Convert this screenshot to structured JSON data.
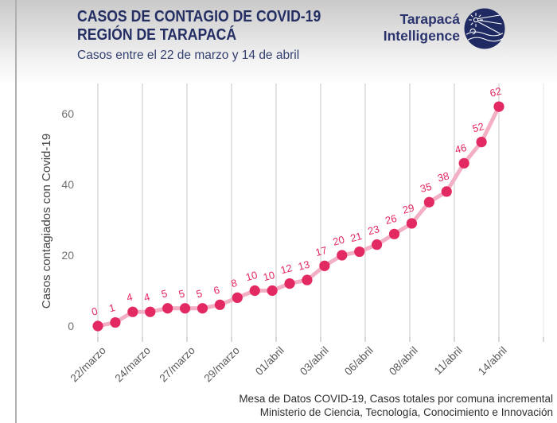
{
  "header": {
    "title_line1": "CASOS DE CONTAGIO DE COVID-19",
    "title_line2": "REGIÓN DE TARAPACÁ",
    "subtitle": "Casos entre el 22 de marzo y 14 de abril",
    "title_color": "#242e63"
  },
  "logo": {
    "name_line1": "Tarapacá",
    "name_line2": "Intelligence",
    "icon": "tarapaca-intelligence-globe-icon",
    "color": "#2b346f",
    "icon_bg": "#1f2a63"
  },
  "chart_data": {
    "type": "line",
    "title": "",
    "xlabel": "",
    "ylabel": "Casos contagiados con Covid-19",
    "n_points": 24,
    "values": [
      0,
      1,
      4,
      4,
      5,
      5,
      5,
      6,
      8,
      10,
      10,
      12,
      13,
      17,
      20,
      21,
      23,
      26,
      29,
      35,
      38,
      46,
      52,
      62
    ],
    "point_labels": [
      "0",
      "1",
      "4",
      "4",
      "5",
      "5",
      "5",
      "6",
      "8",
      "10",
      "10",
      "12",
      "13",
      "17",
      "20",
      "21",
      "23",
      "26",
      "29",
      "35",
      "38",
      "46",
      "52",
      "62"
    ],
    "x_tick_labels": [
      "22/marzo",
      "24/marzo",
      "27/marzo",
      "29/marzo",
      "01/abril",
      "03/abril",
      "06/abril",
      "08/abril",
      "11/abril",
      "14/abril"
    ],
    "y_ticks": [
      0,
      20,
      40,
      60
    ],
    "ylim": [
      0,
      68
    ],
    "grid": "vertical-only",
    "legend": "none",
    "line_color": "#f3b0c5",
    "point_color": "#e22961",
    "label_color": "#e22961",
    "gridline_color": "#e4e4e4",
    "axis_text_color": "#6f6f6f"
  },
  "footer": {
    "line1": "Mesa de Datos COVID-19, Casos totales por comuna incremental",
    "line2": "Ministerio de Ciencia, Tecnología, Conocimiento e Innovación"
  }
}
